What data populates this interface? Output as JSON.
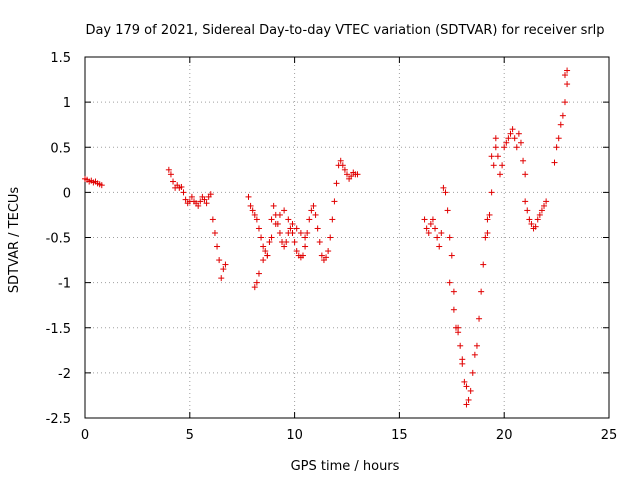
{
  "chart_data": {
    "type": "scatter",
    "title": "Day 179 of 2021, Sidereal Day-to-day VTEC variation (SDTVAR) for receiver srlp",
    "xlabel": "GPS time / hours",
    "ylabel": "SDTVAR / TECUs",
    "xlim": [
      0,
      25
    ],
    "ylim": [
      -2.5,
      1.5
    ],
    "xticks": [
      0,
      5,
      10,
      15,
      20,
      25
    ],
    "yticks": [
      -2.5,
      -2,
      -1.5,
      -1,
      -0.5,
      0,
      0.5,
      1,
      1.5
    ],
    "xtick_labels": [
      "0",
      "5",
      "10",
      "15",
      "20",
      "25"
    ],
    "ytick_labels": [
      "-2.5",
      "-2",
      "-1.5",
      "-1",
      "-0.5",
      "0",
      "0.5",
      "1",
      "1.5"
    ],
    "grid": true,
    "marker": "+",
    "color": "#e00000",
    "series": [
      {
        "name": "SDTVAR",
        "x": [
          0.0,
          0.1,
          0.2,
          0.3,
          0.4,
          0.5,
          0.6,
          0.7,
          0.8,
          4.0,
          4.1,
          4.2,
          4.3,
          4.4,
          4.5,
          4.6,
          4.7,
          4.8,
          4.9,
          5.0,
          5.1,
          5.2,
          5.3,
          5.4,
          5.5,
          5.6,
          5.7,
          5.8,
          5.9,
          6.0,
          6.1,
          6.2,
          6.3,
          6.4,
          6.5,
          6.6,
          6.7,
          7.8,
          7.9,
          8.0,
          8.1,
          8.2,
          8.3,
          8.4,
          8.5,
          8.6,
          8.7,
          8.8,
          8.9,
          9.0,
          9.1,
          9.2,
          9.3,
          9.4,
          9.5,
          9.6,
          9.7,
          9.8,
          9.9,
          10.0,
          10.1,
          10.2,
          10.3,
          10.4,
          10.5,
          10.6,
          10.7,
          10.8,
          10.9,
          11.0,
          11.1,
          11.2,
          11.3,
          11.4,
          11.5,
          11.6,
          11.7,
          11.8,
          11.9,
          12.0,
          12.1,
          12.2,
          12.3,
          12.4,
          12.5,
          12.6,
          12.7,
          12.8,
          12.9,
          13.0,
          8.1,
          8.2,
          8.3,
          8.5,
          8.7,
          8.9,
          9.1,
          9.3,
          9.5,
          9.7,
          9.9,
          10.1,
          10.3,
          10.5,
          16.2,
          16.3,
          16.4,
          16.5,
          16.6,
          16.7,
          16.8,
          16.9,
          17.0,
          17.1,
          17.2,
          17.3,
          17.4,
          17.5,
          17.6,
          17.7,
          17.8,
          17.9,
          18.0,
          18.1,
          18.2,
          18.3,
          18.4,
          18.5,
          18.6,
          18.7,
          18.8,
          18.9,
          19.0,
          19.1,
          19.2,
          19.3,
          19.4,
          19.5,
          19.6,
          19.7,
          19.8,
          19.9,
          20.0,
          20.1,
          20.2,
          20.3,
          20.4,
          20.5,
          20.6,
          20.7,
          20.8,
          20.9,
          21.0,
          17.4,
          17.6,
          17.8,
          18.0,
          18.2,
          19.2,
          19.4,
          19.6,
          21.0,
          21.1,
          21.2,
          21.3,
          21.4,
          21.5,
          21.6,
          21.7,
          21.8,
          21.9,
          22.0,
          22.4,
          22.5,
          22.6,
          22.7,
          22.8,
          22.9,
          23.0,
          22.9,
          23.0
        ],
        "y": [
          0.15,
          0.14,
          0.12,
          0.13,
          0.11,
          0.12,
          0.1,
          0.09,
          0.08,
          0.25,
          0.2,
          0.12,
          0.05,
          0.08,
          0.05,
          0.06,
          0.0,
          -0.08,
          -0.12,
          -0.1,
          -0.05,
          -0.1,
          -0.12,
          -0.15,
          -0.1,
          -0.05,
          -0.08,
          -0.12,
          -0.05,
          -0.02,
          -0.3,
          -0.45,
          -0.6,
          -0.75,
          -0.95,
          -0.85,
          -0.8,
          -0.05,
          -0.15,
          -0.2,
          -0.25,
          -0.3,
          -0.4,
          -0.5,
          -0.6,
          -0.65,
          -0.7,
          -0.55,
          -0.3,
          -0.15,
          -0.25,
          -0.35,
          -0.45,
          -0.55,
          -0.6,
          -0.55,
          -0.45,
          -0.4,
          -0.45,
          -0.55,
          -0.65,
          -0.7,
          -0.72,
          -0.7,
          -0.6,
          -0.45,
          -0.3,
          -0.2,
          -0.15,
          -0.25,
          -0.4,
          -0.55,
          -0.7,
          -0.75,
          -0.72,
          -0.65,
          -0.5,
          -0.3,
          -0.1,
          0.1,
          0.3,
          0.35,
          0.3,
          0.25,
          0.2,
          0.15,
          0.18,
          0.22,
          0.2,
          0.2,
          -1.05,
          -1.0,
          -0.9,
          -0.75,
          -0.7,
          -0.5,
          -0.35,
          -0.25,
          -0.2,
          -0.3,
          -0.35,
          -0.4,
          -0.45,
          -0.5,
          -0.3,
          -0.4,
          -0.45,
          -0.35,
          -0.3,
          -0.4,
          -0.5,
          -0.6,
          -0.45,
          0.05,
          0.0,
          -0.2,
          -0.5,
          -0.7,
          -1.1,
          -1.5,
          -1.5,
          -1.7,
          -1.9,
          -2.1,
          -2.35,
          -2.3,
          -2.2,
          -2.0,
          -1.8,
          -1.7,
          -1.4,
          -1.1,
          -0.8,
          -0.5,
          -0.3,
          -0.25,
          0.0,
          0.3,
          0.5,
          0.4,
          0.2,
          0.3,
          0.5,
          0.55,
          0.6,
          0.65,
          0.7,
          0.6,
          0.5,
          0.65,
          0.55,
          0.35,
          0.2,
          -1.0,
          -1.3,
          -1.55,
          -1.85,
          -2.15,
          -0.45,
          0.4,
          0.6,
          -0.1,
          -0.2,
          -0.3,
          -0.35,
          -0.4,
          -0.38,
          -0.3,
          -0.25,
          -0.2,
          -0.15,
          -0.1,
          0.33,
          0.5,
          0.6,
          0.75,
          0.85,
          1.0,
          1.2,
          1.3,
          1.35
        ]
      }
    ]
  }
}
